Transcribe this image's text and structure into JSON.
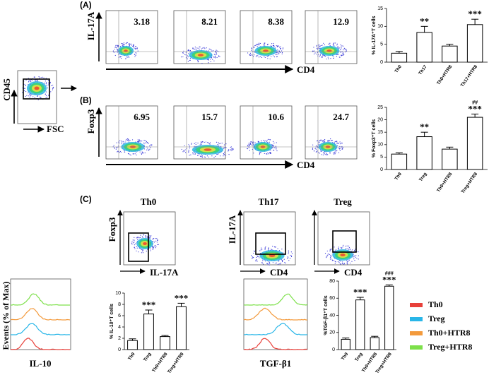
{
  "panel_a": {
    "tag": "(A)",
    "y_label": "IL-17A",
    "x_label": "CD4",
    "percentages": [
      "3.18",
      "8.21",
      "8.38",
      "12.9"
    ]
  },
  "panel_b": {
    "tag": "(B)",
    "y_label": "Foxp3",
    "x_label": "CD4",
    "percentages": [
      "6.95",
      "15.7",
      "10.6",
      "24.7"
    ]
  },
  "gating": {
    "y_label": "CD45",
    "x_label": "FSC"
  },
  "panel_c": {
    "tag": "(C)",
    "plots": [
      {
        "title": "Th0",
        "y_label": "Foxp3",
        "x_label": "IL-17A"
      },
      {
        "title": "Th17",
        "y_label": "IL-17A",
        "x_label": "CD4"
      },
      {
        "title": "Treg",
        "x_label": "CD4"
      }
    ]
  },
  "histograms": {
    "y_label": "Events (% of Max)",
    "x_labels": [
      "IL-10",
      "TGF-β1"
    ],
    "series": [
      {
        "name": "Th0",
        "color": "#e8403a"
      },
      {
        "name": "Treg",
        "color": "#29b6e8"
      },
      {
        "name": "Th0+HTR8",
        "color": "#f39a3c"
      },
      {
        "name": "Treg+HTR8",
        "color": "#7de04a"
      }
    ]
  },
  "chart_data": [
    {
      "type": "bar",
      "y_label": "% IL-17A⁺T cells",
      "categories": [
        "Th0",
        "Th17",
        "Th0+HTR8",
        "Th17+HTR8"
      ],
      "values": [
        2.5,
        8.3,
        4.5,
        10.5
      ],
      "errors": [
        0.5,
        1.7,
        0.5,
        1.5
      ],
      "ylim": [
        0,
        15
      ],
      "yticks": [
        0,
        5,
        10,
        15
      ],
      "significance": [
        null,
        "**",
        null,
        "***"
      ],
      "significance_vs_control": [
        null,
        null,
        null,
        null
      ],
      "color": "#ffffff"
    },
    {
      "type": "bar",
      "y_label": "% Foxp3⁺T cells",
      "categories": [
        "Th0",
        "Treg",
        "Th0+HTR8",
        "Treg+HTR8"
      ],
      "values": [
        6.2,
        13.2,
        8.2,
        21
      ],
      "errors": [
        0.5,
        1.8,
        0.8,
        1.3
      ],
      "ylim": [
        0,
        25
      ],
      "yticks": [
        0,
        5,
        10,
        15,
        20,
        25
      ],
      "significance": [
        null,
        "**",
        null,
        "***"
      ],
      "significance_vs_control": [
        null,
        null,
        null,
        "##"
      ],
      "color": "#ffffff"
    },
    {
      "type": "bar",
      "y_label": "% IL-10⁺T cells",
      "categories": [
        "Th0",
        "Treg",
        "Th0+HTR8",
        "Treg+HTR8"
      ],
      "values": [
        1.6,
        6.3,
        2.3,
        7.6
      ],
      "errors": [
        0.3,
        0.7,
        0.2,
        0.6
      ],
      "ylim": [
        0,
        10
      ],
      "yticks": [
        0,
        2,
        4,
        6,
        8,
        10
      ],
      "significance": [
        null,
        "***",
        null,
        "***"
      ],
      "significance_vs_control": [
        null,
        null,
        null,
        null
      ],
      "color": "#ffffff"
    },
    {
      "type": "bar",
      "y_label": "%TGF-β1⁺T cells",
      "categories": [
        "Th0",
        "Treg",
        "Th0+HTR8",
        "Treg+HTR8"
      ],
      "values": [
        12,
        58,
        14,
        74
      ],
      "errors": [
        1.5,
        3,
        1.5,
        1.5
      ],
      "ylim": [
        0,
        80
      ],
      "yticks": [
        0,
        20,
        40,
        60,
        80
      ],
      "significance": [
        null,
        "***",
        null,
        "***"
      ],
      "significance_vs_control": [
        null,
        null,
        null,
        "###"
      ],
      "color": "#ffffff"
    }
  ]
}
